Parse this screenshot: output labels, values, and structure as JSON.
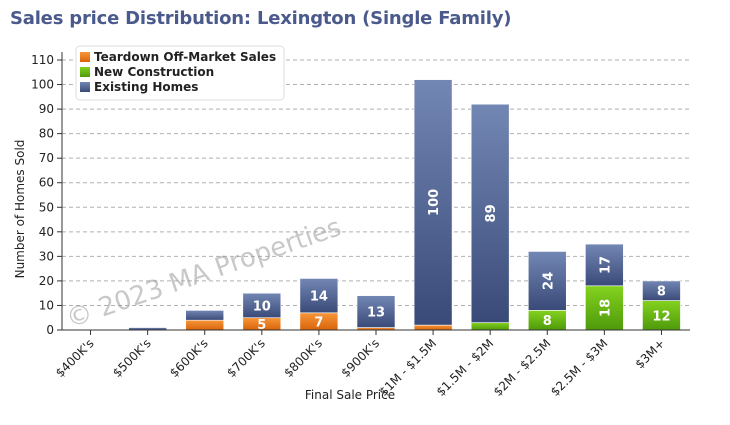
{
  "chart_data": {
    "type": "bar",
    "stacked": true,
    "title": "Sales price Distribution: Lexington (Single Family)",
    "xlabel": "Final Sale Price",
    "ylabel": "Number of Homes Sold",
    "ylim": [
      0,
      110
    ],
    "yticks": [
      0,
      10,
      20,
      30,
      40,
      50,
      60,
      70,
      80,
      90,
      100,
      110
    ],
    "grid": true,
    "legend_position": "top-left",
    "watermark": "© 2023 MA Properties",
    "categories": [
      "$400K's",
      "$500K's",
      "$600K's",
      "$700K's",
      "$800K's",
      "$900K's",
      "$1M - $1.5M",
      "$1.5M - $2M",
      "$2M - $2.5M",
      "$2.5M - $3M",
      "$3M+"
    ],
    "series": [
      {
        "name": "Teardown Off-Market Sales",
        "color": "#f07c14",
        "values": [
          0,
          0,
          4,
          5,
          7,
          1,
          2,
          0,
          0,
          0,
          0
        ],
        "labels": [
          "",
          "",
          "",
          "5",
          "7",
          "",
          "",
          "",
          "",
          "",
          ""
        ]
      },
      {
        "name": "New Construction",
        "color": "#66b414",
        "values": [
          0,
          0,
          0,
          0,
          0,
          0,
          0,
          3,
          8,
          18,
          12
        ],
        "labels": [
          "",
          "",
          "",
          "",
          "",
          "",
          "",
          "",
          "8",
          "18",
          "12"
        ]
      },
      {
        "name": "Existing Homes",
        "color": "#4a5c8c",
        "values": [
          0,
          1,
          4,
          10,
          14,
          13,
          100,
          89,
          24,
          17,
          8
        ],
        "labels": [
          "",
          "",
          "",
          "10",
          "14",
          "13",
          "100",
          "89",
          "24",
          "17",
          "8"
        ]
      }
    ]
  }
}
